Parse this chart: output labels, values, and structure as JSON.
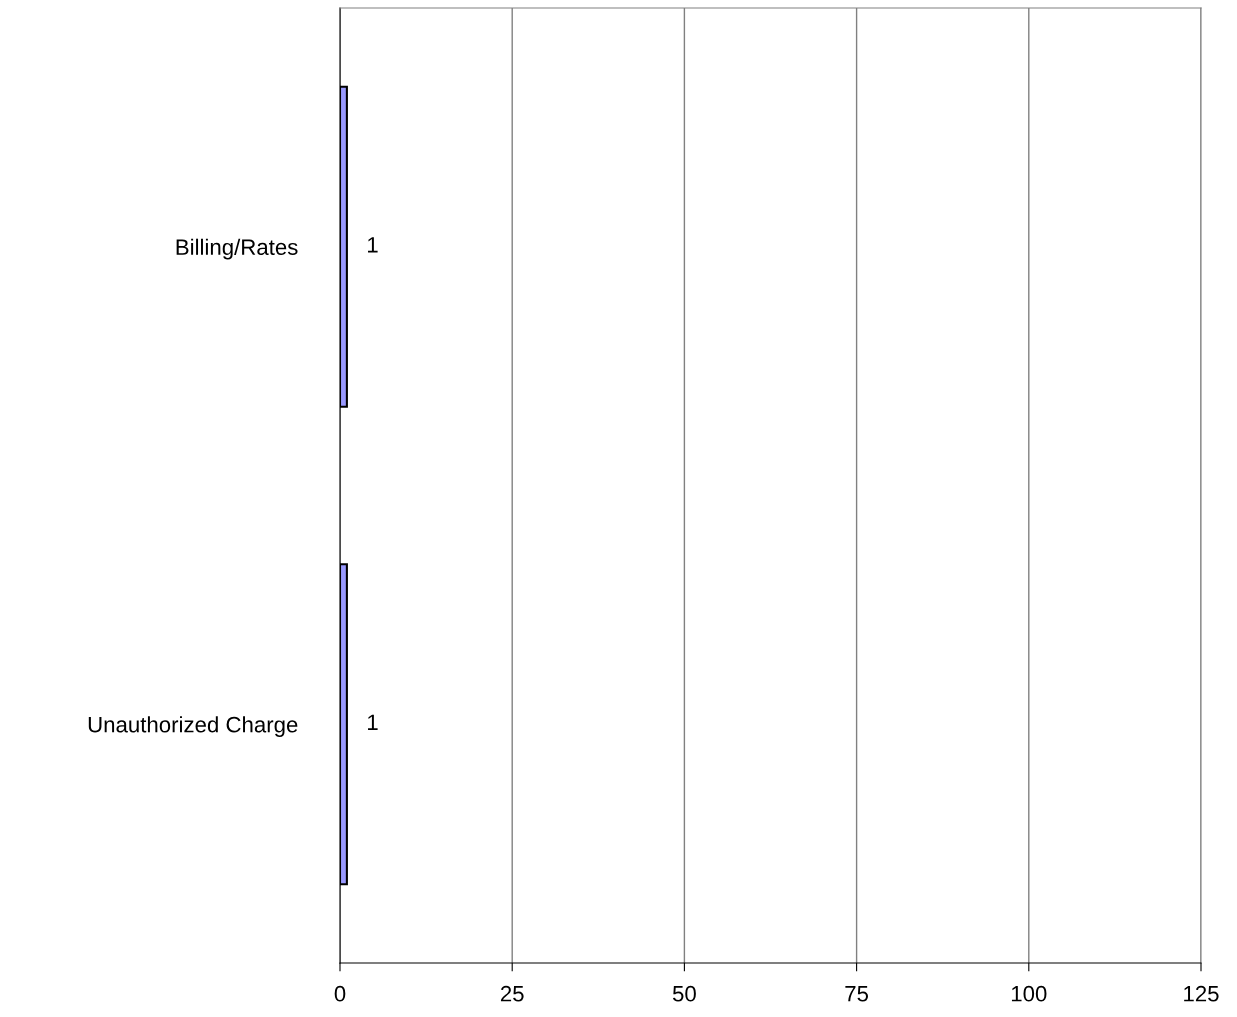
{
  "chart_data": {
    "type": "bar",
    "orientation": "horizontal",
    "categories": [
      "Billing/Rates",
      "Unauthorized Charge"
    ],
    "values": [
      1,
      1
    ],
    "color": "#9999ff",
    "xlim": [
      0,
      125
    ],
    "xticks": [
      0,
      25,
      50,
      75,
      100,
      125
    ],
    "grid": "x",
    "data_labels": true
  }
}
